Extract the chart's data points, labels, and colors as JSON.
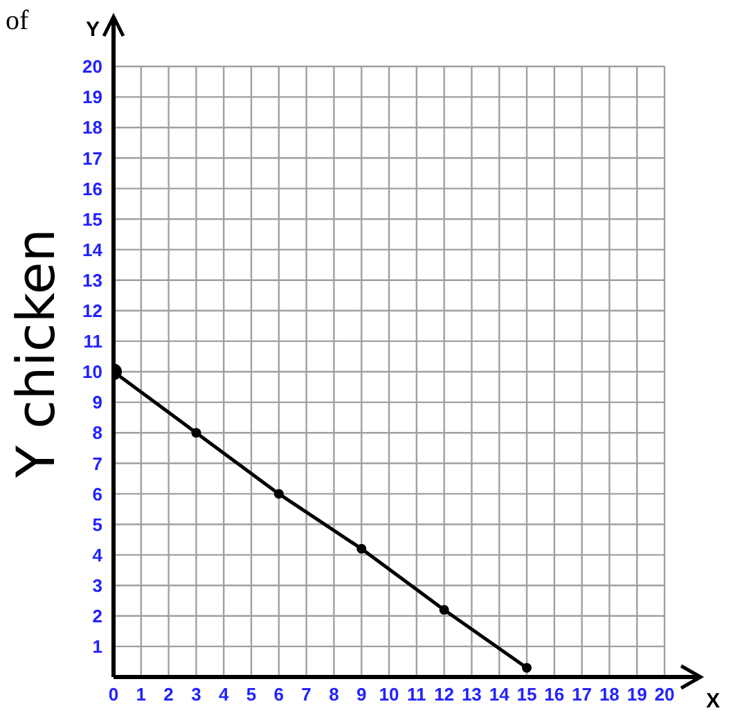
{
  "chart_data": {
    "type": "line",
    "xlabel": "X",
    "ylabel": "Y",
    "annotations": [
      "of",
      "Y chicken"
    ],
    "x": [
      0,
      3,
      6,
      9,
      12,
      15
    ],
    "series": [
      {
        "color": "#000000",
        "values": [
          10,
          8,
          6,
          4.2,
          2.2,
          0.3
        ]
      }
    ],
    "xlim": [
      0,
      20
    ],
    "ylim": [
      0,
      20
    ],
    "xticks": [
      0,
      1,
      2,
      3,
      4,
      5,
      6,
      7,
      8,
      9,
      10,
      11,
      12,
      13,
      14,
      15,
      16,
      17,
      18,
      19,
      20
    ],
    "yticks": [
      1,
      2,
      3,
      4,
      5,
      6,
      7,
      8,
      9,
      10,
      11,
      12,
      13,
      14,
      15,
      16,
      17,
      18,
      19,
      20
    ],
    "grid": true,
    "marker": "circle",
    "line_style": "solid"
  }
}
